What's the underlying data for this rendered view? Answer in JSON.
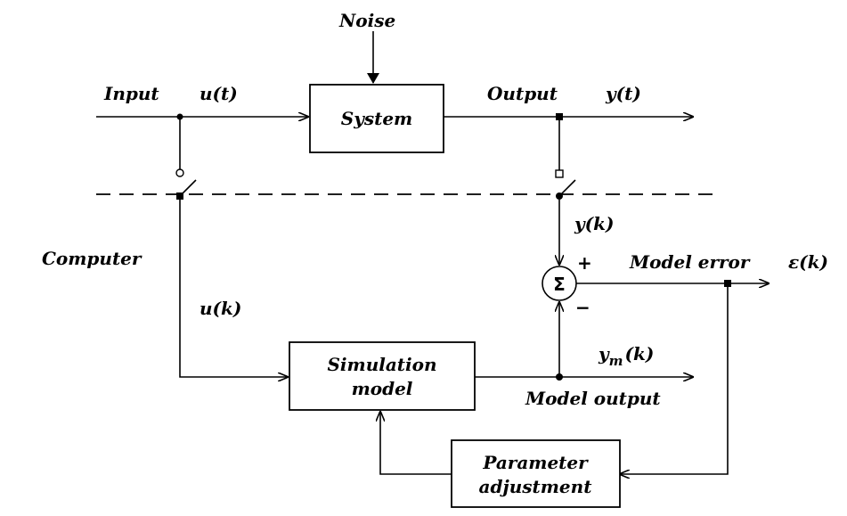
{
  "labels": {
    "noise": "Noise",
    "input": "Input",
    "u_t": "u(t)",
    "system": "System",
    "output": "Output",
    "y_t": "y(t)",
    "computer": "Computer",
    "y_k": "y(k)",
    "plus": "+",
    "minus": "−",
    "sigma": "Σ",
    "model_error": "Model error",
    "epsilon_k": "ε(k)",
    "u_k": "u(k)",
    "sim_line1": "Simulation",
    "sim_line2": "model",
    "y_m": "y",
    "y_m_sub": "m",
    "y_m_arg": "(k)",
    "model_output": "Model output",
    "param_line1": "Parameter",
    "param_line2": "adjustment"
  }
}
